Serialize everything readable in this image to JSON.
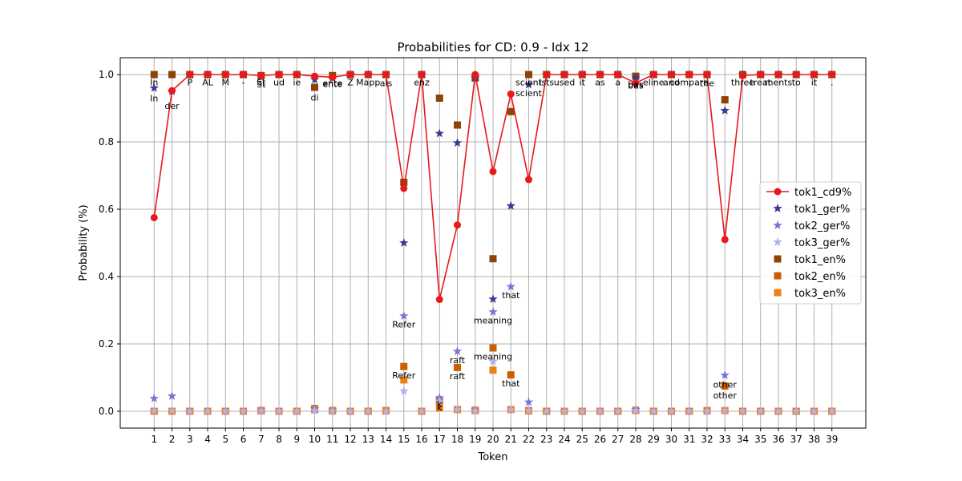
{
  "chart_data": {
    "type": "line",
    "title": "Probabilities for CD: 0.9 - Idx 12",
    "xlabel": "Token",
    "ylabel": "Probability (%)",
    "x": [
      1,
      2,
      3,
      4,
      5,
      6,
      7,
      8,
      9,
      10,
      11,
      12,
      13,
      14,
      15,
      16,
      17,
      18,
      19,
      20,
      21,
      22,
      23,
      24,
      25,
      26,
      27,
      28,
      29,
      30,
      31,
      32,
      33,
      34,
      35,
      36,
      37,
      38,
      39
    ],
    "ylim": [
      -0.05,
      1.05
    ],
    "xlim": [
      -0.9,
      40.9
    ],
    "yticks": [
      "0.0",
      "0.2",
      "0.4",
      "0.6",
      "0.8",
      "1.0"
    ],
    "ytick_values": [
      0.0,
      0.2,
      0.4,
      0.6,
      0.8,
      1.0
    ],
    "grid": true,
    "legend_position": "center-right",
    "colors": {
      "tok1_cd9": "#e8191c",
      "tok1_ger": "#393b8f",
      "tok2_ger": "#7b76d6",
      "tok3_ger": "#b5aef0",
      "tok1_en": "#8c4303",
      "tok2_en": "#c85f03",
      "tok3_en": "#ee7f11"
    },
    "series": [
      {
        "name": "tok1_cd9%",
        "kind": "line",
        "marker": "circle",
        "color_key": "tok1_cd9",
        "values": [
          0.575,
          0.952,
          1.0,
          1.0,
          1.0,
          1.0,
          0.997,
          1.0,
          1.0,
          0.995,
          0.992,
          1.0,
          1.0,
          1.0,
          0.662,
          1.0,
          0.332,
          0.553,
          1.0,
          0.712,
          0.942,
          0.688,
          1.0,
          1.0,
          1.0,
          1.0,
          1.0,
          0.975,
          1.0,
          1.0,
          1.0,
          1.0,
          0.51,
          0.997,
          1.0,
          1.0,
          1.0,
          1.0,
          1.0
        ]
      },
      {
        "name": "tok1_ger%",
        "kind": "scatter",
        "marker": "star",
        "color_key": "tok1_ger",
        "values": [
          0.96,
          0.95,
          1.0,
          1.0,
          1.0,
          1.0,
          0.993,
          1.0,
          1.0,
          0.985,
          0.99,
          1.0,
          1.0,
          1.0,
          0.5,
          1.0,
          0.825,
          0.797,
          0.99,
          0.333,
          0.61,
          0.97,
          1.0,
          1.0,
          1.0,
          1.0,
          1.0,
          0.99,
          1.0,
          1.0,
          1.0,
          1.0,
          0.893,
          1.0,
          1.0,
          1.0,
          1.0,
          1.0,
          1.0
        ]
      },
      {
        "name": "tok2_ger%",
        "kind": "scatter",
        "marker": "star",
        "color_key": "tok2_ger",
        "values": [
          0.038,
          0.045,
          0,
          0,
          0,
          0,
          0.003,
          0,
          0,
          0.007,
          0.003,
          0,
          0,
          0,
          0.283,
          0,
          0.04,
          0.178,
          0.003,
          0.295,
          0.37,
          0.027,
          0,
          0,
          0,
          0,
          0,
          0.005,
          0,
          0,
          0,
          0,
          0.107,
          0,
          0,
          0,
          0,
          0,
          0
        ]
      },
      {
        "name": "tok3_ger%",
        "kind": "scatter",
        "marker": "star",
        "color_key": "tok3_ger",
        "values": [
          0.001,
          0.002,
          0,
          0,
          0,
          0,
          0.001,
          0,
          0,
          0.002,
          0.001,
          0,
          0,
          0,
          0.06,
          0,
          0.03,
          0.005,
          0.001,
          0.148,
          0.005,
          0.002,
          0,
          0,
          0,
          0,
          0,
          0.002,
          0,
          0,
          0,
          0,
          0.002,
          0,
          0,
          0,
          0,
          0,
          0
        ]
      },
      {
        "name": "tok1_en%",
        "kind": "scatter",
        "marker": "square",
        "color_key": "tok1_en",
        "values": [
          1.0,
          1.0,
          1.0,
          1.0,
          1.0,
          1.0,
          0.997,
          1.0,
          1.0,
          0.962,
          0.997,
          1.0,
          1.0,
          1.0,
          0.68,
          1.0,
          0.93,
          0.85,
          0.99,
          0.453,
          0.89,
          1.0,
          1.0,
          1.0,
          1.0,
          1.0,
          1.0,
          0.995,
          1.0,
          1.0,
          1.0,
          1.0,
          0.925,
          1.0,
          1.0,
          1.0,
          1.0,
          1.0,
          1.0
        ]
      },
      {
        "name": "tok2_en%",
        "kind": "scatter",
        "marker": "square",
        "color_key": "tok2_en",
        "values": [
          0.0,
          0.0,
          0,
          0,
          0,
          0,
          0.002,
          0,
          0,
          0.008,
          0.002,
          0,
          0,
          0.002,
          0.133,
          0,
          0.03,
          0.13,
          0.003,
          0.188,
          0.108,
          0.002,
          0,
          0,
          0,
          0,
          0,
          0.003,
          0,
          0,
          0,
          0.002,
          0.075,
          0,
          0,
          0,
          0,
          0,
          0
        ]
      },
      {
        "name": "tok3_en%",
        "kind": "scatter",
        "marker": "square",
        "color_key": "tok3_en",
        "values": [
          0.0,
          0.0,
          0,
          0,
          0,
          0,
          0.001,
          0,
          0,
          0.005,
          0.001,
          0,
          0,
          0.001,
          0.093,
          0,
          0.01,
          0.005,
          0.002,
          0.122,
          0.005,
          0.001,
          0,
          0,
          0,
          0,
          0,
          0.002,
          0,
          0,
          0,
          0.001,
          0.002,
          0,
          0,
          0,
          0,
          0,
          0
        ]
      }
    ],
    "annotations": [
      {
        "x": 1,
        "y": 0.977,
        "text": "In"
      },
      {
        "x": 1,
        "y": 0.93,
        "text": "In"
      },
      {
        "x": 2,
        "y": 0.907,
        "text": "der"
      },
      {
        "x": 3,
        "y": 0.977,
        "text": "P"
      },
      {
        "x": 4,
        "y": 0.977,
        "text": "AL"
      },
      {
        "x": 5,
        "y": 0.977,
        "text": "M"
      },
      {
        "x": 6,
        "y": 0.977,
        "text": "-"
      },
      {
        "x": 7,
        "y": 0.977,
        "text": "St"
      },
      {
        "x": 7,
        "y": 0.972,
        "text": "St"
      },
      {
        "x": 8,
        "y": 0.977,
        "text": "ud"
      },
      {
        "x": 9,
        "y": 0.977,
        "text": "ie"
      },
      {
        "x": 10,
        "y": 0.932,
        "text": "di"
      },
      {
        "x": 11,
        "y": 0.975,
        "text": "ente"
      },
      {
        "x": 11,
        "y": 0.973,
        "text": "ente"
      },
      {
        "x": 12,
        "y": 0.977,
        "text": "Z"
      },
      {
        "x": 13,
        "y": 0.977,
        "text": "Mapp"
      },
      {
        "x": 14,
        "y": 0.975,
        "text": "als"
      },
      {
        "x": 16,
        "y": 0.977,
        "text": "enz"
      },
      {
        "x": 15,
        "y": 0.258,
        "text": "Refer"
      },
      {
        "x": 15,
        "y": 0.107,
        "text": "Refer"
      },
      {
        "x": 17,
        "y": 0.022,
        "text": "k"
      },
      {
        "x": 17,
        "y": 0.012,
        "text": "k"
      },
      {
        "x": 18,
        "y": 0.152,
        "text": "raft"
      },
      {
        "x": 18,
        "y": 0.105,
        "text": "raft"
      },
      {
        "x": 20,
        "y": 0.27,
        "text": "meaning"
      },
      {
        "x": 20,
        "y": 0.163,
        "text": "meaning"
      },
      {
        "x": 21,
        "y": 0.345,
        "text": "that"
      },
      {
        "x": 21,
        "y": 0.083,
        "text": "that"
      },
      {
        "x": 22,
        "y": 0.977,
        "text": "scient"
      },
      {
        "x": 22,
        "y": 0.945,
        "text": "scient"
      },
      {
        "x": 23,
        "y": 0.977,
        "text": "ists"
      },
      {
        "x": 24,
        "y": 0.977,
        "text": "used"
      },
      {
        "x": 25,
        "y": 0.977,
        "text": "it"
      },
      {
        "x": 26,
        "y": 0.977,
        "text": "as"
      },
      {
        "x": 27,
        "y": 0.977,
        "text": "a"
      },
      {
        "x": 28,
        "y": 0.972,
        "text": "bas"
      },
      {
        "x": 28,
        "y": 0.968,
        "text": "bas"
      },
      {
        "x": 29,
        "y": 0.977,
        "text": "eline"
      },
      {
        "x": 30,
        "y": 0.977,
        "text": "and"
      },
      {
        "x": 31,
        "y": 0.977,
        "text": "compare"
      },
      {
        "x": 32,
        "y": 0.975,
        "text": "the"
      },
      {
        "x": 33,
        "y": 0.08,
        "text": "other"
      },
      {
        "x": 33,
        "y": 0.048,
        "text": "other"
      },
      {
        "x": 34,
        "y": 0.977,
        "text": "three"
      },
      {
        "x": 35,
        "y": 0.977,
        "text": "treat"
      },
      {
        "x": 36,
        "y": 0.977,
        "text": "ments"
      },
      {
        "x": 37,
        "y": 0.977,
        "text": "to"
      },
      {
        "x": 38,
        "y": 0.977,
        "text": "it"
      },
      {
        "x": 39,
        "y": 0.977,
        "text": "."
      }
    ]
  }
}
